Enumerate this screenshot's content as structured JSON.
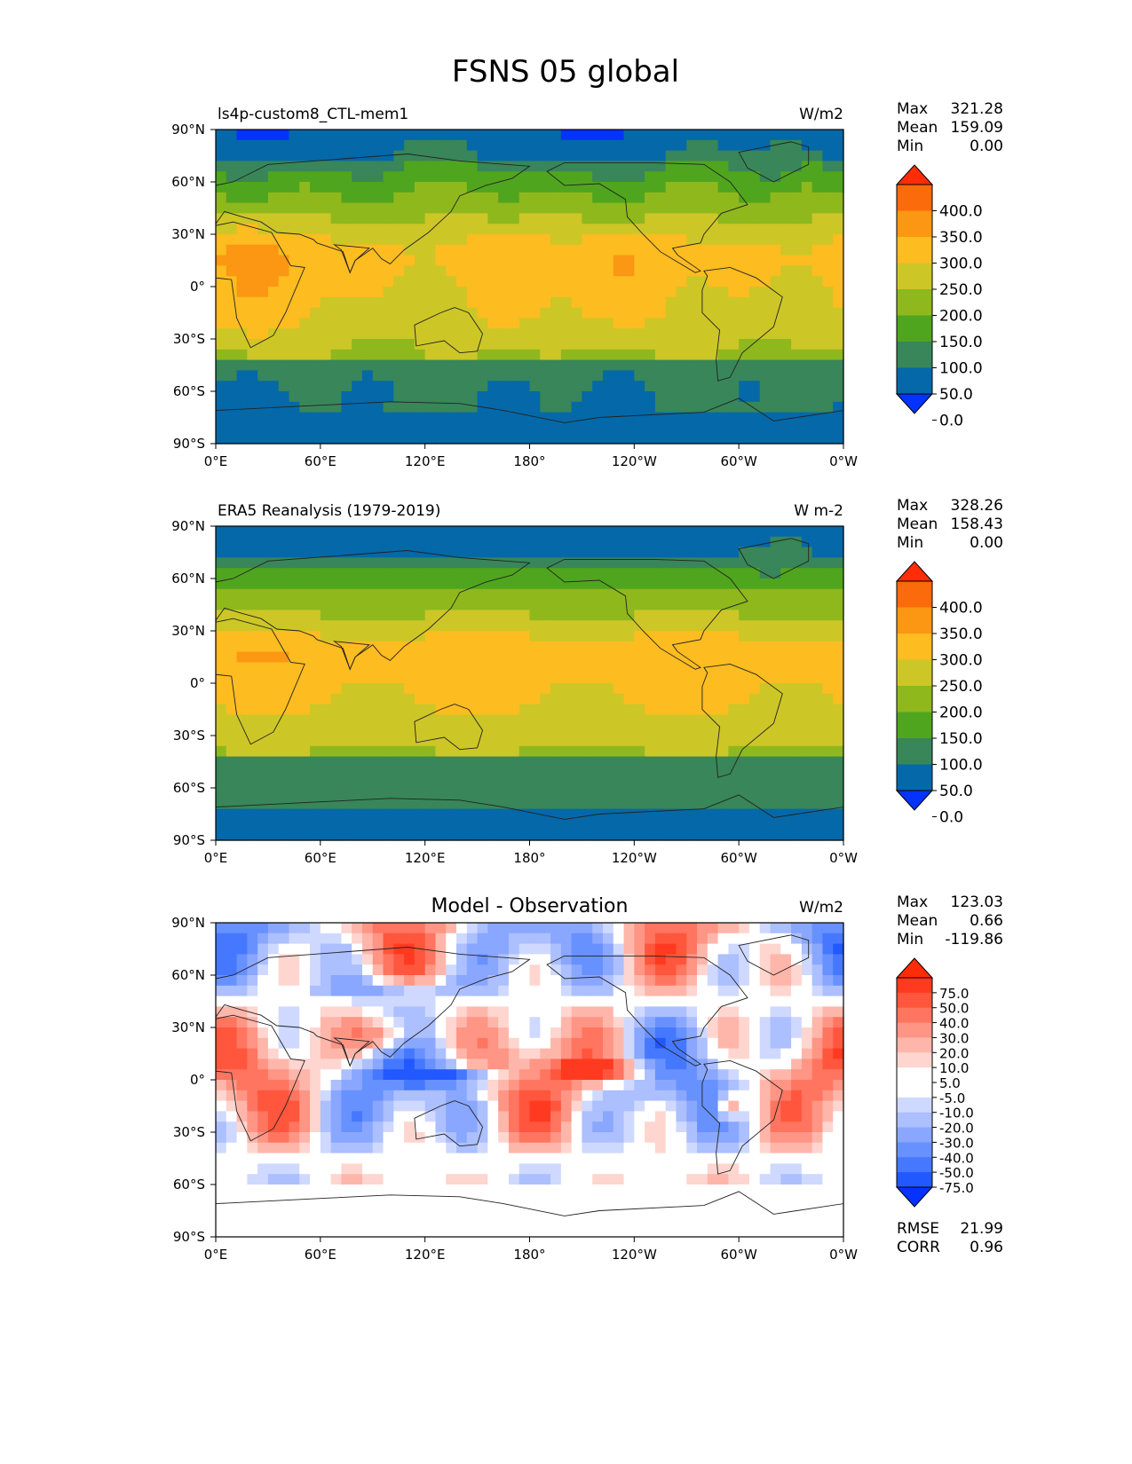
{
  "title": "FSNS 05 global",
  "x_ticks": [
    "0°E",
    "60°E",
    "120°E",
    "180°",
    "120°W",
    "60°W",
    "0°W"
  ],
  "y_ticks": [
    "90°N",
    "60°N",
    "30°N",
    "0°",
    "30°S",
    "60°S",
    "90°S"
  ],
  "colors": {
    "seq": [
      "#0433ff",
      "#0568a8",
      "#388659",
      "#50a51e",
      "#8fb81d",
      "#cdc627",
      "#fdbc20",
      "#fb9712",
      "#fb6a0b",
      "#fe2c07"
    ],
    "diff": [
      "#0433ff",
      "#2258ff",
      "#4578ff",
      "#6791ff",
      "#8aa7ff",
      "#acbfff",
      "#cfd9ff",
      "#ffffff",
      "#ffffff",
      "#ffd5cf",
      "#ffb6aa",
      "#ff9584",
      "#ff7560",
      "#ff563d",
      "#ff3a20",
      "#fe2c07"
    ],
    "coast": "#222222"
  },
  "chart_data": [
    {
      "type": "heatmap",
      "subtitle_left": "ls4p-custom8_CTL-mem1",
      "subtitle_right": "W/m2",
      "stats": {
        "max_label": "Max",
        "max": "321.28",
        "mean_label": "Mean",
        "mean": "159.09",
        "min_label": "Min",
        "min": "0.00"
      },
      "colorbar_levels": [
        "400.0",
        "350.0",
        "300.0",
        "250.0",
        "200.0",
        "150.0",
        "100.0",
        "50.0",
        "0.0"
      ],
      "xlim": [
        0,
        360
      ],
      "ylim": [
        -90,
        90
      ],
      "field": "model"
    },
    {
      "type": "heatmap",
      "subtitle_left": "ERA5 Reanalysis (1979-2019)",
      "subtitle_right": "W m-2",
      "stats": {
        "max_label": "Max",
        "max": "328.26",
        "mean_label": "Mean",
        "mean": "158.43",
        "min_label": "Min",
        "min": "0.00"
      },
      "colorbar_levels": [
        "400.0",
        "350.0",
        "300.0",
        "250.0",
        "200.0",
        "150.0",
        "100.0",
        "50.0",
        "0.0"
      ],
      "xlim": [
        0,
        360
      ],
      "ylim": [
        -90,
        90
      ],
      "field": "obs"
    },
    {
      "type": "heatmap",
      "subtitle_center": "Model - Observation",
      "subtitle_right": "W/m2",
      "stats": {
        "max_label": "Max",
        "max": "123.03",
        "mean_label": "Mean",
        "mean": "0.66",
        "min_label": "Min",
        "min": "-119.86"
      },
      "colorbar_levels": [
        "75.0",
        "50.0",
        "40.0",
        "30.0",
        "20.0",
        "10.0",
        "5.0",
        "-5.0",
        "-10.0",
        "-20.0",
        "-30.0",
        "-40.0",
        "-50.0",
        "-75.0"
      ],
      "extra_stats": {
        "rmse_label": "RMSE",
        "rmse": "21.99",
        "corr_label": "CORR",
        "corr": "0.96"
      },
      "xlim": [
        0,
        360
      ],
      "ylim": [
        -90,
        90
      ],
      "field": "diff"
    }
  ]
}
